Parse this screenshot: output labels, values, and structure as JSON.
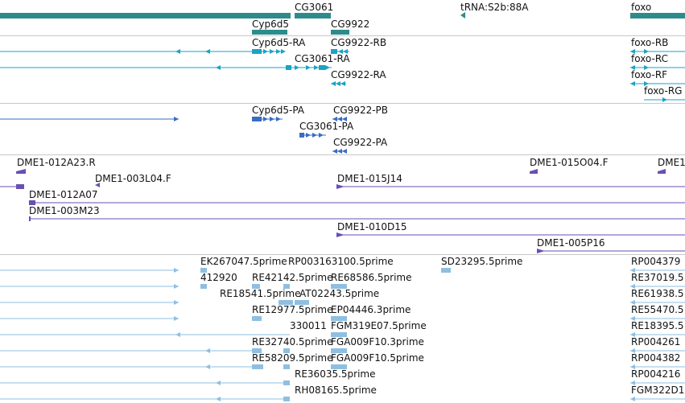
{
  "browser": {
    "colors": {
      "gene": "#2e8b8b",
      "transcript": "#1aa3c4",
      "protein": "#3a6cc2",
      "clone": "#6a4fb3",
      "est": "#8fbfe0",
      "separator": "#c8c8c8"
    },
    "genes": [
      {
        "label": "CG3061"
      },
      {
        "label": "tRNA:S2b:88A"
      },
      {
        "label": "foxo"
      },
      {
        "label": "Cyp6d5"
      },
      {
        "label": "CG9922"
      }
    ],
    "transcripts": [
      {
        "label": "Cyp6d5-RA"
      },
      {
        "label": "CG9922-RB"
      },
      {
        "label": "foxo-RB"
      },
      {
        "label": "CG3061-RA"
      },
      {
        "label": "foxo-RC"
      },
      {
        "label": "CG9922-RA"
      },
      {
        "label": "foxo-RF"
      },
      {
        "label": "foxo-RG"
      }
    ],
    "proteins": [
      {
        "label": "Cyp6d5-PA"
      },
      {
        "label": "CG9922-PB"
      },
      {
        "label": "CG3061-PA"
      },
      {
        "label": "CG9922-PA"
      }
    ],
    "clones": [
      {
        "label": "DME1-012A23.R"
      },
      {
        "label": "DME1-015O04.F"
      },
      {
        "label": "DME1"
      },
      {
        "label": "DME1-003L04.F"
      },
      {
        "label": "DME1-015J14"
      },
      {
        "label": "DME1-012A07"
      },
      {
        "label": "DME1-003M23"
      },
      {
        "label": "DME1-010D15"
      },
      {
        "label": "DME1-005P16"
      }
    ],
    "ests": [
      {
        "label": "EK267047.5prime"
      },
      {
        "label": "RP003163100.5prime"
      },
      {
        "label": "SD23295.5prime"
      },
      {
        "label": "RP004379"
      },
      {
        "label": "412920"
      },
      {
        "label": "RE42142.5prime"
      },
      {
        "label": "RE68586.5prime"
      },
      {
        "label": "RE37019.5"
      },
      {
        "label": "RE18541.5prime"
      },
      {
        "label": "AT02243.5prime"
      },
      {
        "label": "RE61938.5"
      },
      {
        "label": "RE12977.5prime"
      },
      {
        "label": "EP04446.3prime"
      },
      {
        "label": "RE55470.5"
      },
      {
        "label": "330011"
      },
      {
        "label": "FGM319E07.5prime"
      },
      {
        "label": "RE18395.5"
      },
      {
        "label": "RE32740.5prime"
      },
      {
        "label": "FGA009F10.3prime"
      },
      {
        "label": "RP004261"
      },
      {
        "label": "RE58209.5prime"
      },
      {
        "label": "FGA009F10.5prime"
      },
      {
        "label": "RP004382"
      },
      {
        "label": "RE36035.5prime"
      },
      {
        "label": "RP004216"
      },
      {
        "label": "RH08165.5prime"
      },
      {
        "label": "FGM322D1"
      }
    ]
  }
}
